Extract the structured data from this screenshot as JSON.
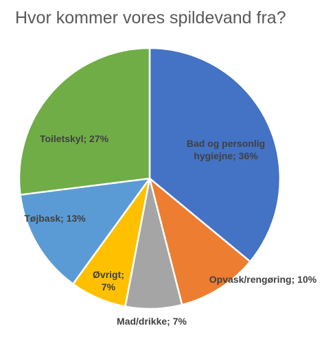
{
  "chart_data": {
    "type": "pie",
    "title": "Hvor kommer vores spildevand fra?",
    "slices": [
      {
        "label": "Bad og personlig hygiejne",
        "value": 36,
        "display": [
          "Bad og personlig",
          "hygiejne; 36%"
        ],
        "color": "#4472c4"
      },
      {
        "label": "Opvask/rengøring",
        "value": 10,
        "display": [
          "Opvask/rengøring; 10%"
        ],
        "color": "#ed7d31"
      },
      {
        "label": "Mad/drikke",
        "value": 7,
        "display": [
          "Mad/drikke; 7%"
        ],
        "color": "#a5a5a5"
      },
      {
        "label": "Øvrigt",
        "value": 7,
        "display": [
          "Øvrigt;",
          "7%"
        ],
        "color": "#ffc000"
      },
      {
        "label": "Tøjbask",
        "value": 13,
        "display": [
          "Tøjbask; 13%"
        ],
        "color": "#5b9bd5"
      },
      {
        "label": "Toiletskyl",
        "value": 27,
        "display": [
          "Toiletskyl; 27%"
        ],
        "color": "#70ad47"
      }
    ]
  }
}
